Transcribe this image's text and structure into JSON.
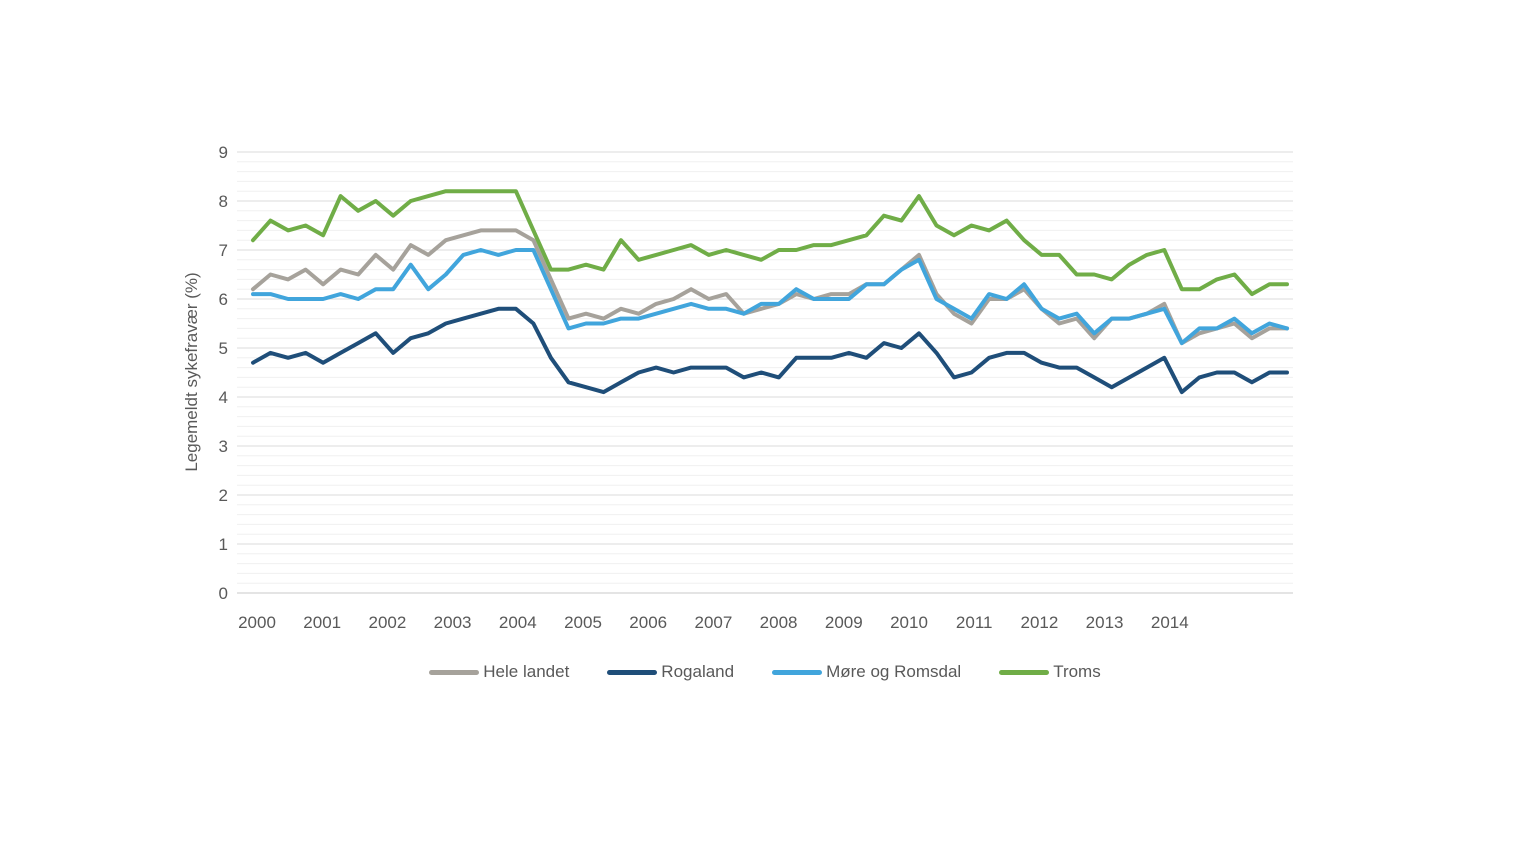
{
  "chart_data": {
    "type": "line",
    "title": "",
    "ylabel": "Legemeldt sykefravær (%)",
    "xlabel": "",
    "ylim": [
      0,
      9
    ],
    "y_major_step": 1,
    "y_minor_step": 0.2,
    "grid": "on",
    "legend_position": "bottom",
    "x_years": [
      2000,
      2001,
      2002,
      2003,
      2004,
      2005,
      2006,
      2007,
      2008,
      2009,
      2010,
      2011,
      2012,
      2013,
      2014
    ],
    "quarters_per_year": 4,
    "categories_note": "60 quarterly data points, 2000Q1 - 2014Q4",
    "axis_text_color": "#595959",
    "series": [
      {
        "name": "Hele landet",
        "color": "#A6A29B",
        "values": [
          6.2,
          6.5,
          6.4,
          6.6,
          6.3,
          6.6,
          6.5,
          6.9,
          6.6,
          7.1,
          6.9,
          7.2,
          7.3,
          7.4,
          7.4,
          7.4,
          7.2,
          6.4,
          5.6,
          5.7,
          5.6,
          5.8,
          5.7,
          5.9,
          6.0,
          6.2,
          6.0,
          6.1,
          5.7,
          5.8,
          5.9,
          6.1,
          6.0,
          6.1,
          6.1,
          6.3,
          6.3,
          6.6,
          6.9,
          6.1,
          5.7,
          5.5,
          6.0,
          6.0,
          6.2,
          5.8,
          5.5,
          5.6,
          5.2,
          5.6,
          5.6,
          5.7,
          5.9,
          5.1,
          5.3,
          5.4,
          5.5,
          5.2,
          5.4,
          5.4
        ]
      },
      {
        "name": "Rogaland",
        "color": "#1F4E79",
        "values": [
          4.7,
          4.9,
          4.8,
          4.9,
          4.7,
          4.9,
          5.1,
          5.3,
          4.9,
          5.2,
          5.3,
          5.5,
          5.6,
          5.7,
          5.8,
          5.8,
          5.5,
          4.8,
          4.3,
          4.2,
          4.1,
          4.3,
          4.5,
          4.6,
          4.5,
          4.6,
          4.6,
          4.6,
          4.4,
          4.5,
          4.4,
          4.8,
          4.8,
          4.8,
          4.9,
          4.8,
          5.1,
          5.0,
          5.3,
          4.9,
          4.4,
          4.5,
          4.8,
          4.9,
          4.9,
          4.7,
          4.6,
          4.6,
          4.4,
          4.2,
          4.4,
          4.6,
          4.8,
          4.1,
          4.4,
          4.5,
          4.5,
          4.3,
          4.5,
          4.5
        ]
      },
      {
        "name": "Møre og Romsdal",
        "color": "#41A5DC",
        "values": [
          6.1,
          6.1,
          6.0,
          6.0,
          6.0,
          6.1,
          6.0,
          6.2,
          6.2,
          6.7,
          6.2,
          6.5,
          6.9,
          7.0,
          6.9,
          7.0,
          7.0,
          6.2,
          5.4,
          5.5,
          5.5,
          5.6,
          5.6,
          5.7,
          5.8,
          5.9,
          5.8,
          5.8,
          5.7,
          5.9,
          5.9,
          6.2,
          6.0,
          6.0,
          6.0,
          6.3,
          6.3,
          6.6,
          6.8,
          6.0,
          5.8,
          5.6,
          6.1,
          6.0,
          6.3,
          5.8,
          5.6,
          5.7,
          5.3,
          5.6,
          5.6,
          5.7,
          5.8,
          5.1,
          5.4,
          5.4,
          5.6,
          5.3,
          5.5,
          5.4
        ]
      },
      {
        "name": "Troms",
        "color": "#70AD47",
        "values": [
          7.2,
          7.6,
          7.4,
          7.5,
          7.3,
          8.1,
          7.8,
          8.0,
          7.7,
          8.0,
          8.1,
          8.2,
          8.2,
          8.2,
          8.2,
          8.2,
          7.4,
          6.6,
          6.6,
          6.7,
          6.6,
          7.2,
          6.8,
          6.9,
          7.0,
          7.1,
          6.9,
          7.0,
          6.9,
          6.8,
          7.0,
          7.0,
          7.1,
          7.1,
          7.2,
          7.3,
          7.7,
          7.6,
          8.1,
          7.5,
          7.3,
          7.5,
          7.4,
          7.6,
          7.2,
          6.9,
          6.9,
          6.5,
          6.5,
          6.4,
          6.7,
          6.9,
          7.0,
          6.2,
          6.2,
          6.4,
          6.5,
          6.1,
          6.3,
          6.3
        ]
      }
    ]
  }
}
